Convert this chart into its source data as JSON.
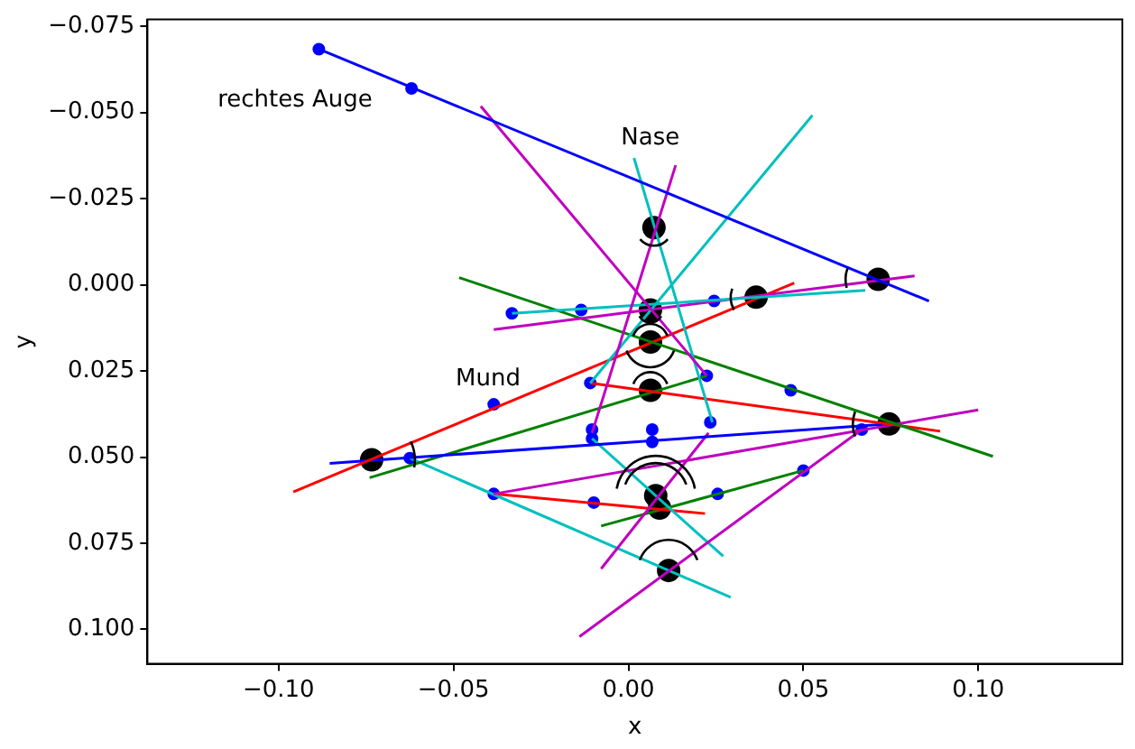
{
  "chart_data": {
    "type": "scatter",
    "xlabel": "x",
    "ylabel": "y",
    "xlim": [
      -0.1375,
      0.1412
    ],
    "ylim": [
      0.11,
      -0.077
    ],
    "xticks": [
      {
        "value": -0.1,
        "label": "−0.10"
      },
      {
        "value": -0.05,
        "label": "−0.05"
      },
      {
        "value": 0,
        "label": "0.00"
      },
      {
        "value": 0.05,
        "label": "0.05"
      },
      {
        "value": 0.1,
        "label": "0.10"
      }
    ],
    "yticks": [
      {
        "value": -0.075,
        "label": "−0.075"
      },
      {
        "value": -0.05,
        "label": "−0.050"
      },
      {
        "value": -0.025,
        "label": "−0.025"
      },
      {
        "value": 0,
        "label": "0.000"
      },
      {
        "value": 0.025,
        "label": "0.025"
      },
      {
        "value": 0.05,
        "label": "0.050"
      },
      {
        "value": 0.075,
        "label": "0.075"
      },
      {
        "value": 0.1,
        "label": "0.100"
      }
    ],
    "grid": false,
    "legend": false,
    "annotations": [
      "rechtes Auge",
      "Nase",
      "Mund"
    ],
    "series": [
      {
        "type": "line",
        "marker": "none",
        "color": "#0000ff",
        "x": [
          -0.0885,
          0.0859
        ],
        "values": [
          -0.0684,
          0.0047
        ]
      },
      {
        "type": "line",
        "marker": "none",
        "color": "#bf00bf",
        "x": [
          -0.0422,
          0.0224
        ],
        "values": [
          -0.0518,
          0.0264
        ]
      },
      {
        "type": "line",
        "marker": "none",
        "color": "#bf00bf",
        "x": [
          0.0135,
          -0.0104
        ],
        "values": [
          -0.0347,
          0.043
        ]
      },
      {
        "type": "line",
        "marker": "none",
        "color": "#00bfbf",
        "x": [
          0.0526,
          -0.0109
        ],
        "values": [
          -0.0492,
          0.0285
        ]
      },
      {
        "type": "line",
        "marker": "none",
        "color": "#00bfbf",
        "x": [
          0.0016,
          0.024
        ],
        "values": [
          -0.0368,
          0.0399
        ]
      },
      {
        "type": "line",
        "marker": "none",
        "color": "#00bfbf",
        "x": [
          -0.0333,
          0.0677
        ],
        "values": [
          0.0083,
          0.0016
        ]
      },
      {
        "type": "line",
        "marker": "none",
        "color": "#bf00bf",
        "x": [
          -0.0385,
          0.0818
        ],
        "values": [
          0.013,
          -0.0026
        ]
      },
      {
        "type": "line",
        "marker": "none",
        "color": "#008000",
        "x": [
          -0.0484,
          0.1042
        ],
        "values": [
          -0.0021,
          0.0498
        ]
      },
      {
        "type": "line",
        "marker": "none",
        "color": "#ff0000",
        "x": [
          -0.0958,
          0.0474
        ],
        "values": [
          0.0601,
          -0.0005
        ]
      },
      {
        "type": "line",
        "marker": "none",
        "color": "#ff0000",
        "x": [
          -0.0109,
          0.0891
        ],
        "values": [
          0.0285,
          0.0425
        ]
      },
      {
        "type": "line",
        "marker": "none",
        "color": "#0000ff",
        "x": [
          -0.0854,
          0.0745
        ],
        "values": [
          0.0518,
          0.0404
        ]
      },
      {
        "type": "line",
        "marker": "none",
        "color": "#008000",
        "x": [
          -0.074,
          0.0224
        ],
        "values": [
          0.056,
          0.0264
        ]
      },
      {
        "type": "line",
        "marker": "none",
        "color": "#bf00bf",
        "x": [
          -0.0385,
          0.1
        ],
        "values": [
          0.0607,
          0.0363
        ]
      },
      {
        "type": "line",
        "marker": "none",
        "color": "#bf00bf",
        "x": [
          -0.0078,
          0.0229
        ],
        "values": [
          0.0824,
          0.043
        ]
      },
      {
        "type": "line",
        "marker": "none",
        "color": "#bf00bf",
        "x": [
          -0.014,
          0.0667
        ],
        "values": [
          0.1021,
          0.042
        ]
      },
      {
        "type": "line",
        "marker": "none",
        "color": "#00bfbf",
        "x": [
          -0.0625,
          0.0292
        ],
        "values": [
          0.0503,
          0.0907
        ]
      },
      {
        "type": "line",
        "marker": "none",
        "color": "#00bfbf",
        "x": [
          -0.0104,
          0.0271
        ],
        "values": [
          0.0446,
          0.0788
        ]
      },
      {
        "type": "line",
        "marker": "none",
        "color": "#ff0000",
        "x": [
          -0.0385,
          0.0219
        ],
        "values": [
          0.0607,
          0.0664
        ]
      },
      {
        "type": "line",
        "marker": "none",
        "color": "#008000",
        "x": [
          -0.0078,
          0.05
        ],
        "values": [
          0.07,
          0.0539
        ]
      },
      {
        "type": "scatter",
        "marker": "circle",
        "color": "#0000ff",
        "x": [
          -0.0885,
          -0.062,
          -0.0333,
          -0.0135,
          0.0245,
          -0.0109,
          0.0224,
          0.0464,
          -0.0104,
          -0.0104,
          0.0068,
          0.0068,
          0.0234,
          0.0667,
          -0.0625,
          -0.0385,
          -0.0385,
          -0.0099,
          0.0255,
          0.05
        ],
        "values": [
          -0.0684,
          -0.057,
          0.0083,
          0.0073,
          0.0047,
          0.0285,
          0.0264,
          0.0306,
          0.042,
          0.0446,
          0.042,
          0.0456,
          0.0399,
          0.042,
          0.0503,
          0.0347,
          0.0607,
          0.0632,
          0.0607,
          0.0539
        ]
      },
      {
        "type": "scatter",
        "marker": "circle",
        "color": "#000000",
        "x": [
          0.0073,
          0.0063,
          0.0063,
          0.0063,
          0.0365,
          0.0714,
          0.0745,
          -0.0734,
          0.0078,
          0.0089,
          0.0115
        ],
        "values": [
          -0.0166,
          0.0073,
          0.0166,
          0.0306,
          0.0036,
          -0.0016,
          0.0404,
          0.0508,
          0.0612,
          0.0648,
          0.0829
        ]
      }
    ]
  }
}
